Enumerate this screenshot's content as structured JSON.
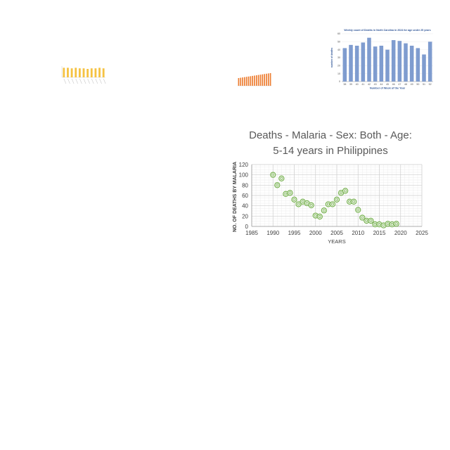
{
  "chart_data": [
    {
      "type": "bar",
      "title": "",
      "xlabel": "",
      "ylabel": "",
      "categories": [
        "1",
        "2",
        "3",
        "4",
        "5",
        "6",
        "7",
        "8",
        "9",
        "10",
        "11"
      ],
      "values": [
        0.85,
        0.85,
        0.8,
        0.85,
        0.8,
        0.8,
        0.75,
        0.8,
        0.8,
        0.85,
        0.8
      ],
      "ylim": [
        0,
        1
      ],
      "color": "#f5c242"
    },
    {
      "type": "bar",
      "title": "",
      "xlabel": "",
      "ylabel": "",
      "categories": [
        "1",
        "2",
        "3",
        "4",
        "5",
        "6",
        "7",
        "8",
        "9",
        "10",
        "11",
        "12",
        "13",
        "14",
        "15",
        "16",
        "17"
      ],
      "values": [
        50,
        52,
        54,
        56,
        58,
        60,
        62,
        64,
        66,
        68,
        70,
        72,
        74,
        76,
        78,
        80,
        82
      ],
      "ylim": [
        0,
        100
      ],
      "color": "#ed7d31"
    },
    {
      "type": "bar",
      "title": "Weekly count of Deaths in North Carolina in 2024 for age under 25 years",
      "xlabel": "Number of Week of the Year",
      "ylabel": "number of deaths",
      "categories": [
        "38",
        "39",
        "40",
        "41",
        "42",
        "43",
        "44",
        "45",
        "46",
        "47",
        "48",
        "49",
        "50",
        "51",
        "52"
      ],
      "values": [
        42,
        46,
        45,
        49,
        55,
        44,
        45,
        40,
        52,
        51,
        48,
        45,
        42,
        34,
        50
      ],
      "ylim": [
        0,
        60
      ],
      "yticks": [
        0,
        10,
        20,
        30,
        40,
        50,
        60
      ],
      "color": "#7f9ccf"
    },
    {
      "type": "scatter",
      "title": "Deaths - Malaria - Sex: Both - Age: 5-14 years in Philippines",
      "title_lines": [
        "Deaths - Malaria - Sex: Both - Age:",
        "5-14 years in Philippines"
      ],
      "xlabel": "YEARS",
      "ylabel": "NO. OF DEATHS BY MALARIA",
      "xlim": [
        1985,
        2025
      ],
      "ylim": [
        0,
        120
      ],
      "xticks": [
        1985,
        1990,
        1995,
        2000,
        2005,
        2010,
        2015,
        2020,
        2025
      ],
      "yticks": [
        0,
        20,
        40,
        60,
        80,
        100,
        120
      ],
      "grid": true,
      "marker_color": "#70ad47",
      "x": [
        1990,
        1991,
        1992,
        1993,
        1994,
        1995,
        1996,
        1997,
        1998,
        1999,
        2000,
        2001,
        2002,
        2003,
        2004,
        2005,
        2006,
        2007,
        2008,
        2009,
        2010,
        2011,
        2012,
        2013,
        2014,
        2015,
        2016,
        2017,
        2018,
        2019
      ],
      "y": [
        100,
        80,
        93,
        63,
        65,
        52,
        43,
        48,
        45,
        41,
        21,
        19,
        31,
        43,
        43,
        52,
        65,
        69,
        48,
        48,
        32,
        17,
        11,
        11,
        4,
        4,
        2,
        5,
        4,
        5
      ]
    }
  ]
}
